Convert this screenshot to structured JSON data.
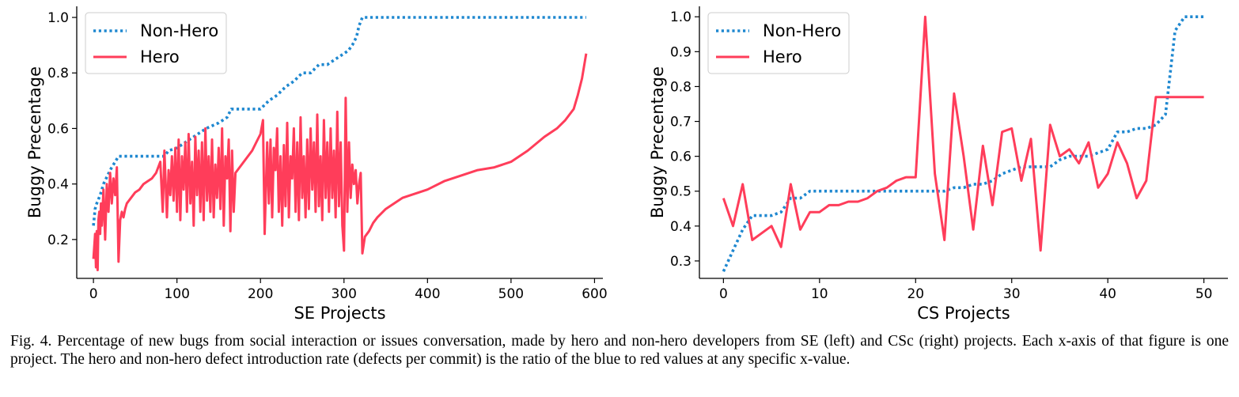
{
  "caption": "Fig. 4.  Percentage of new bugs from social interaction or issues conversation, made by hero and non-hero developers from SE (left) and CSc (right) projects. Each x-axis of that figure is one project. The hero and non-hero defect introduction rate (defects per commit) is the ratio of the blue to red values at any specific x-value.",
  "colors": {
    "hero": "#ff3d5a",
    "non_hero": "#1f88d0"
  },
  "chart_data": [
    {
      "type": "line",
      "xlabel": "SE Projects",
      "ylabel": "Buggy Precentage",
      "xlim": [
        -20,
        610
      ],
      "ylim": [
        0.06,
        1.04
      ],
      "xticks": [
        0,
        100,
        200,
        300,
        400,
        500,
        600
      ],
      "yticks": [
        0.2,
        0.4,
        0.6,
        0.8,
        1.0
      ],
      "ytick_labels": [
        "0.2",
        "0.4",
        "0.6",
        "0.8",
        "1.0"
      ],
      "legend": "top-left",
      "series": [
        {
          "name": "Non-Hero",
          "style": "dotted",
          "color": "#1f88d0",
          "x": [
            0,
            2,
            4,
            8,
            12,
            20,
            30,
            60,
            85,
            90,
            100,
            110,
            120,
            135,
            150,
            160,
            165,
            200,
            210,
            220,
            230,
            240,
            250,
            260,
            270,
            280,
            290,
            300,
            305,
            310,
            315,
            318,
            322,
            400,
            500,
            590
          ],
          "y": [
            0.25,
            0.31,
            0.33,
            0.36,
            0.4,
            0.45,
            0.5,
            0.5,
            0.5,
            0.52,
            0.53,
            0.55,
            0.57,
            0.6,
            0.62,
            0.64,
            0.67,
            0.67,
            0.7,
            0.72,
            0.75,
            0.77,
            0.8,
            0.8,
            0.83,
            0.83,
            0.85,
            0.87,
            0.88,
            0.9,
            0.93,
            0.97,
            1.0,
            1.0,
            1.0,
            1.0
          ]
        },
        {
          "name": "Hero",
          "style": "solid",
          "color": "#ff3d5a",
          "x": [
            0,
            2,
            3,
            4,
            5,
            6,
            7,
            8,
            9,
            10,
            12,
            14,
            16,
            18,
            20,
            22,
            24,
            26,
            28,
            30,
            32,
            34,
            36,
            38,
            40,
            45,
            50,
            55,
            60,
            65,
            70,
            75,
            80,
            83,
            85,
            88,
            90,
            92,
            94,
            96,
            98,
            100,
            102,
            104,
            106,
            108,
            110,
            112,
            114,
            116,
            118,
            120,
            122,
            124,
            126,
            128,
            130,
            132,
            134,
            136,
            138,
            140,
            142,
            144,
            146,
            148,
            150,
            152,
            154,
            156,
            158,
            160,
            162,
            164,
            166,
            168,
            170,
            180,
            190,
            195,
            200,
            203,
            205,
            208,
            210,
            212,
            214,
            216,
            218,
            220,
            222,
            224,
            226,
            228,
            230,
            232,
            234,
            236,
            238,
            240,
            242,
            244,
            246,
            248,
            250,
            252,
            254,
            256,
            258,
            260,
            262,
            264,
            266,
            268,
            270,
            272,
            274,
            276,
            278,
            280,
            282,
            284,
            286,
            288,
            290,
            292,
            294,
            296,
            298,
            300,
            302,
            304,
            306,
            308,
            310,
            312,
            314,
            316,
            318,
            320,
            322,
            325,
            330,
            335,
            340,
            350,
            360,
            370,
            380,
            390,
            400,
            420,
            440,
            460,
            480,
            500,
            520,
            540,
            555,
            565,
            575,
            580,
            585,
            590
          ],
          "y": [
            0.13,
            0.22,
            0.1,
            0.23,
            0.09,
            0.27,
            0.3,
            0.22,
            0.33,
            0.25,
            0.38,
            0.2,
            0.4,
            0.3,
            0.44,
            0.33,
            0.42,
            0.36,
            0.46,
            0.12,
            0.27,
            0.3,
            0.28,
            0.31,
            0.33,
            0.35,
            0.37,
            0.38,
            0.4,
            0.41,
            0.42,
            0.44,
            0.48,
            0.3,
            0.52,
            0.28,
            0.45,
            0.36,
            0.5,
            0.34,
            0.53,
            0.3,
            0.56,
            0.27,
            0.5,
            0.38,
            0.55,
            0.3,
            0.58,
            0.33,
            0.48,
            0.25,
            0.57,
            0.36,
            0.52,
            0.3,
            0.55,
            0.27,
            0.6,
            0.34,
            0.5,
            0.3,
            0.56,
            0.28,
            0.47,
            0.35,
            0.53,
            0.31,
            0.6,
            0.25,
            0.5,
            0.42,
            0.56,
            0.23,
            0.52,
            0.3,
            0.44,
            0.48,
            0.52,
            0.55,
            0.58,
            0.63,
            0.22,
            0.55,
            0.33,
            0.56,
            0.28,
            0.53,
            0.45,
            0.6,
            0.3,
            0.5,
            0.25,
            0.54,
            0.32,
            0.62,
            0.28,
            0.5,
            0.42,
            0.6,
            0.3,
            0.55,
            0.27,
            0.64,
            0.35,
            0.5,
            0.28,
            0.56,
            0.31,
            0.6,
            0.38,
            0.55,
            0.3,
            0.65,
            0.32,
            0.5,
            0.27,
            0.63,
            0.35,
            0.55,
            0.3,
            0.6,
            0.35,
            0.52,
            0.28,
            0.66,
            0.32,
            0.55,
            0.25,
            0.16,
            0.71,
            0.3,
            0.55,
            0.35,
            0.47,
            0.4,
            0.45,
            0.33,
            0.4,
            0.44,
            0.15,
            0.21,
            0.23,
            0.26,
            0.28,
            0.31,
            0.33,
            0.35,
            0.36,
            0.37,
            0.38,
            0.41,
            0.43,
            0.45,
            0.46,
            0.48,
            0.52,
            0.57,
            0.6,
            0.63,
            0.67,
            0.72,
            0.78,
            0.87
          ]
        }
      ]
    },
    {
      "type": "line",
      "xlabel": "CS Projects",
      "ylabel": "Buggy Precentage",
      "xlim": [
        -2.5,
        52.5
      ],
      "ylim": [
        0.25,
        1.03
      ],
      "xticks": [
        0,
        10,
        20,
        30,
        40,
        50
      ],
      "yticks": [
        0.3,
        0.4,
        0.5,
        0.6,
        0.7,
        0.8,
        0.9,
        1.0
      ],
      "ytick_labels": [
        "0.3",
        "0.4",
        "0.5",
        "0.6",
        "0.7",
        "0.8",
        "0.9",
        "1.0"
      ],
      "legend": "top-left",
      "series": [
        {
          "name": "Non-Hero",
          "style": "dotted",
          "color": "#1f88d0",
          "x": [
            0,
            1,
            2,
            3,
            4,
            5,
            6,
            7,
            8,
            9,
            10,
            11,
            12,
            13,
            14,
            15,
            16,
            17,
            18,
            19,
            20,
            21,
            22,
            23,
            24,
            25,
            26,
            27,
            28,
            29,
            30,
            31,
            32,
            33,
            34,
            35,
            36,
            37,
            38,
            39,
            40,
            41,
            42,
            43,
            44,
            45,
            46,
            47,
            48,
            49,
            50
          ],
          "y": [
            0.27,
            0.33,
            0.39,
            0.43,
            0.43,
            0.43,
            0.44,
            0.48,
            0.48,
            0.5,
            0.5,
            0.5,
            0.5,
            0.5,
            0.5,
            0.5,
            0.5,
            0.5,
            0.5,
            0.5,
            0.5,
            0.5,
            0.5,
            0.5,
            0.51,
            0.51,
            0.52,
            0.52,
            0.53,
            0.55,
            0.56,
            0.57,
            0.57,
            0.57,
            0.57,
            0.59,
            0.6,
            0.6,
            0.6,
            0.61,
            0.62,
            0.67,
            0.67,
            0.68,
            0.68,
            0.69,
            0.72,
            0.96,
            1.0,
            1.0,
            1.0
          ]
        },
        {
          "name": "Hero",
          "style": "solid",
          "color": "#ff3d5a",
          "x": [
            0,
            1,
            2,
            3,
            4,
            5,
            6,
            7,
            8,
            9,
            10,
            11,
            12,
            13,
            14,
            15,
            16,
            17,
            18,
            19,
            20,
            21,
            22,
            23,
            24,
            25,
            26,
            27,
            28,
            29,
            30,
            31,
            32,
            33,
            34,
            35,
            36,
            37,
            38,
            39,
            40,
            41,
            42,
            43,
            44,
            45,
            46,
            47,
            48,
            49,
            50
          ],
          "y": [
            0.48,
            0.4,
            0.52,
            0.36,
            0.38,
            0.4,
            0.34,
            0.52,
            0.39,
            0.44,
            0.44,
            0.46,
            0.46,
            0.47,
            0.47,
            0.48,
            0.5,
            0.51,
            0.53,
            0.54,
            0.54,
            1.0,
            0.55,
            0.36,
            0.78,
            0.6,
            0.39,
            0.63,
            0.46,
            0.67,
            0.68,
            0.53,
            0.65,
            0.33,
            0.69,
            0.6,
            0.62,
            0.58,
            0.64,
            0.51,
            0.55,
            0.64,
            0.58,
            0.48,
            0.53,
            0.77,
            0.77,
            0.77,
            0.77,
            0.77,
            0.77
          ]
        }
      ]
    }
  ]
}
